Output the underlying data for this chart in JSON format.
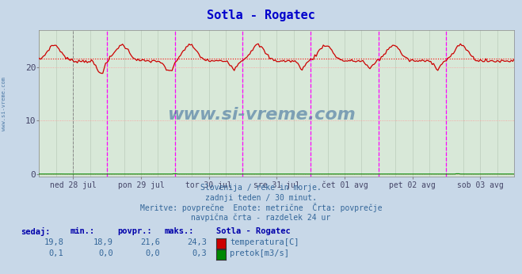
{
  "title": "Sotla - Rogatec",
  "title_color": "#0000cc",
  "bg_color": "#c8d8e8",
  "plot_bg_color": "#d8e8d8",
  "grid_color_h": "#ff9999",
  "grid_color_v": "#bbccbb",
  "vline_color": "#ff00ff",
  "avg_line_color": "#ff0000",
  "avg_line_value": 21.6,
  "temp_color": "#cc0000",
  "flow_color": "#008800",
  "watermark_color": "#336699",
  "xlim": [
    0,
    336
  ],
  "ylim": [
    -0.5,
    27
  ],
  "yticks": [
    0,
    10,
    20
  ],
  "tick_labels": [
    "ned 28 jul",
    "pon 29 jul",
    "tor 30 jul",
    "sre 31 jul",
    "čet 01 avg",
    "pet 02 avg",
    "sob 03 avg"
  ],
  "tick_positions": [
    24,
    72,
    120,
    168,
    216,
    264,
    312
  ],
  "vlines_dashed": [
    48,
    96,
    144,
    192,
    240,
    288
  ],
  "vlines_black_dashed": [
    24
  ],
  "subtitle_lines": [
    "Slovenija / reke in morje.",
    "zadnji teden / 30 minut.",
    "Meritve: povprečne  Enote: metrične  Črta: povprečje",
    "navpična črta - razdelek 24 ur"
  ],
  "table_header": [
    "sedaj:",
    "min.:",
    "povpr.:",
    "maks.:",
    "Sotla - Rogatec"
  ],
  "table_row1": [
    "19,8",
    "18,9",
    "21,6",
    "24,3",
    "temperatura[C]"
  ],
  "table_row2": [
    "0,1",
    "0,0",
    "0,0",
    "0,3",
    "pretok[m3/s]"
  ],
  "n_points": 337
}
